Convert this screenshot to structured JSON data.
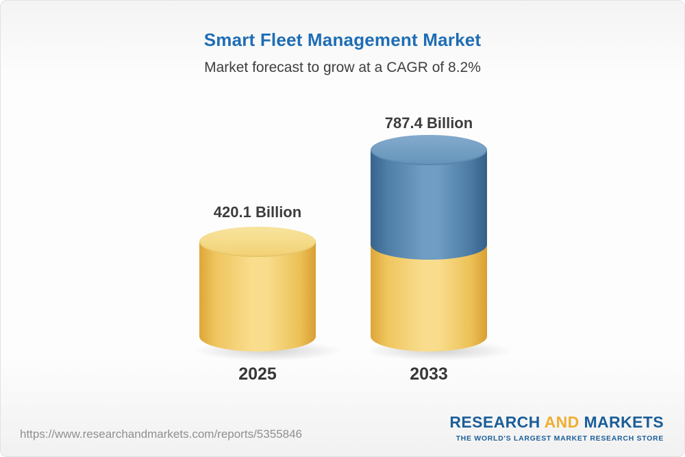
{
  "header": {
    "title": "Smart Fleet Management Market",
    "subtitle": "Market forecast to grow at a CAGR of 8.2%"
  },
  "chart_data": {
    "type": "bar",
    "bar_style": "3d-cylinder",
    "categories": [
      "2025",
      "2033"
    ],
    "values": [
      420.1,
      787.4
    ],
    "value_labels": [
      "420.1 Billion",
      "787.4 Billion"
    ],
    "unit": "Billion",
    "title": "Smart Fleet Management Market",
    "subtitle": "Market forecast to grow at a CAGR of 8.2%",
    "cagr": "8.2%",
    "ylim": [
      0,
      800
    ],
    "grid": false,
    "legend": false,
    "colors": {
      "base_segment_gold": "#f2cd6b",
      "growth_segment_blue": "#5c8cb5"
    },
    "notes": "2033 cylinder is stacked: gold base equal to 2025 value (420.1) with blue growth segment (367.3) on top"
  },
  "bars": [
    {
      "year": "2025",
      "value_label": "420.1 Billion"
    },
    {
      "year": "2033",
      "value_label": "787.4 Billion"
    }
  ],
  "footer": {
    "url": "https://www.researchandmarkets.com/reports/5355846",
    "logo": {
      "part1": "RESEARCH",
      "part2": "AND",
      "part3": "MARKETS",
      "tagline": "THE WORLD'S LARGEST MARKET RESEARCH STORE"
    }
  },
  "colors": {
    "title_blue": "#1e6db4",
    "logo_blue": "#1b5e98",
    "logo_gold": "#efae32",
    "text_dark": "#3c3c3c",
    "url_gray": "#8f8f8f"
  }
}
